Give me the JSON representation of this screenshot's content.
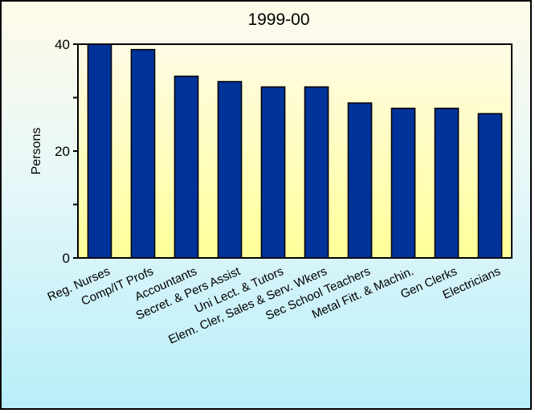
{
  "chart_data": {
    "type": "bar",
    "title": "1999-00",
    "xlabel": "",
    "ylabel": "Persons",
    "ylim": [
      0,
      40
    ],
    "yticks": [
      0,
      20,
      40
    ],
    "grid": false,
    "categories": [
      "Reg. Nurses",
      "Comp/IT Profs",
      "Accountants",
      "Secret. & Pers Assist",
      "Uni Lect. & Tutors",
      "Elem. Cler, Sales & Serv. Wkers",
      "Sec School Teachers",
      "Metal Fitt. & Machin.",
      "Gen Clerks",
      "Electricians"
    ],
    "series": [
      {
        "values": [
          40,
          39,
          34,
          33,
          32,
          32,
          29,
          28,
          28,
          27
        ]
      }
    ],
    "colors": {
      "bar": "#003399",
      "bar_outline": "#000000",
      "plot_top": "#fffbe6",
      "plot_bottom": "#ffff99"
    }
  }
}
